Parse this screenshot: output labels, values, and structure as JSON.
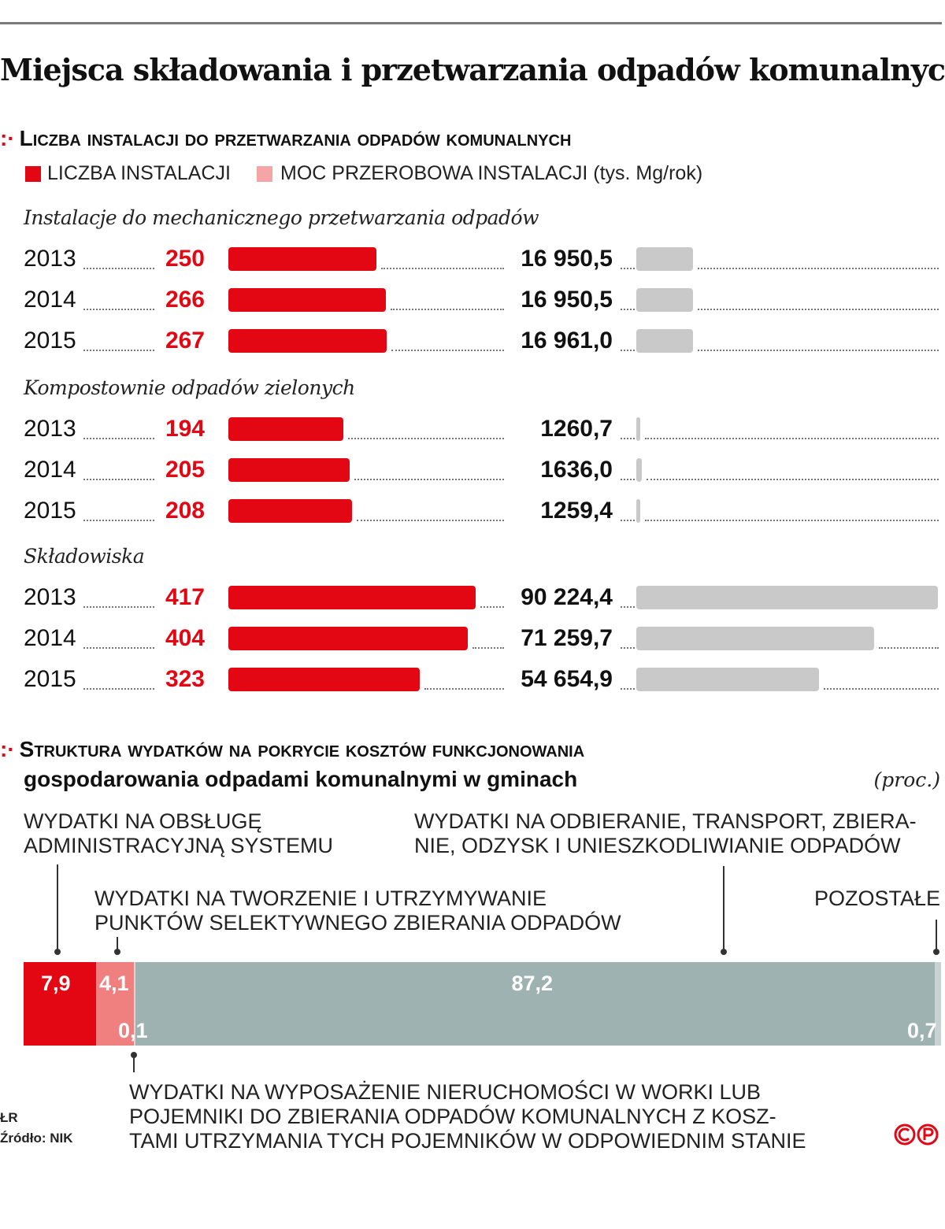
{
  "title": "Miejsca składowania i przetwarzania odpadów komunalnych",
  "section1": {
    "heading": "Liczba instalacji do przetwarzania odpadów komunalnych",
    "legend": [
      {
        "label": "LICZBA INSTALACJI",
        "color": "#e30613"
      },
      {
        "label": "MOC PRZEROBOWA INSTALACJI (tys. Mg/rok)",
        "color": "#f4a6a6"
      }
    ]
  },
  "section2": {
    "heading_line1": "Struktura wydatków na pokrycie kosztów funkcjonowania",
    "heading_line2": "gospodarowania odpadami komunalnymi w gminach",
    "unit": "(proc.)"
  },
  "colors": {
    "red": "#e30613",
    "pink": "#f08080",
    "grey_bar": "#c9c9c9",
    "teal": "#9fb2b2"
  },
  "chart_data": [
    {
      "type": "bar",
      "title": "Liczba instalacji do przetwarzania odpadów komunalnych",
      "groups": [
        {
          "name": "Instalacje do mechanicznego przetwarzania odpadów",
          "rows": [
            {
              "year": "2013",
              "count": 250,
              "count_label": "250",
              "capacity": 16950.5,
              "capacity_label": "16 950,5"
            },
            {
              "year": "2014",
              "count": 266,
              "count_label": "266",
              "capacity": 16950.5,
              "capacity_label": "16 950,5"
            },
            {
              "year": "2015",
              "count": 267,
              "count_label": "267",
              "capacity": 16961.0,
              "capacity_label": "16 961,0"
            }
          ]
        },
        {
          "name": "Kompostownie odpadów zielonych",
          "rows": [
            {
              "year": "2013",
              "count": 194,
              "count_label": "194",
              "capacity": 1260.7,
              "capacity_label": "1260,7"
            },
            {
              "year": "2014",
              "count": 205,
              "count_label": "205",
              "capacity": 1636.0,
              "capacity_label": "1636,0"
            },
            {
              "year": "2015",
              "count": 208,
              "count_label": "208",
              "capacity": 1259.4,
              "capacity_label": "1259,4"
            }
          ]
        },
        {
          "name": "Składowiska",
          "rows": [
            {
              "year": "2013",
              "count": 417,
              "count_label": "417",
              "capacity": 90224.4,
              "capacity_label": "90 224,4"
            },
            {
              "year": "2014",
              "count": 404,
              "count_label": "404",
              "capacity": 71259.7,
              "capacity_label": "71 259,7"
            },
            {
              "year": "2015",
              "count": 323,
              "count_label": "323",
              "capacity": 54654.9,
              "capacity_label": "54 654,9"
            }
          ]
        }
      ],
      "series": [
        {
          "name": "LICZBA INSTALACJI",
          "color": "#e30613"
        },
        {
          "name": "MOC PRZEROBOWA INSTALACJI (tys. Mg/rok)",
          "color": "#c9c9c9"
        }
      ]
    },
    {
      "type": "bar",
      "title": "Struktura wydatków na pokrycie kosztów funkcjonowania gospodarowania odpadami komunalnymi w gminach",
      "unit": "(proc.)",
      "stacked": true,
      "segments": [
        {
          "value": 7.9,
          "label": "7,9",
          "color": "#e30613",
          "caption_line1": "WYDATKI NA OBSŁUGĘ",
          "caption_line2": "ADMINISTRACYJNĄ SYSTEMU"
        },
        {
          "value": 4.1,
          "label": "4,1",
          "color": "#f08080",
          "caption_line1": "WYDATKI NA TWORZENIE I UTRZYMYWANIE",
          "caption_line2": "PUNKTÓW SELEKTYWNEGO ZBIERANIA ODPADÓW"
        },
        {
          "value": 0.1,
          "label": "0,1",
          "color": "#f6c9c9",
          "caption_line1": "WYDATKI NA WYPOSAŻENIE NIERUCHOMOŚCI W WORKI LUB",
          "caption_line2": "POJEMNIKI DO ZBIERANIA ODPADÓW KOMUNALNYCH Z KOSZ-",
          "caption_line3": "TAMI UTRZYMANIA TYCH POJEMNIKÓW W ODPOWIEDNIM STANIE"
        },
        {
          "value": 87.2,
          "label": "87,2",
          "color": "#9fb2b2",
          "caption_line1": "WYDATKI NA ODBIERANIE, TRANSPORT, ZBIERA-",
          "caption_line2": "NIE, ODZYSK I UNIESZKODLIWIANIE ODPADÓW"
        },
        {
          "value": 0.7,
          "label": "0,7",
          "color": "#c7d3d3",
          "caption_line1": "POZOSTAŁE"
        }
      ]
    }
  ],
  "footer": {
    "author": "ŁR",
    "source": "Źródło: NIK"
  }
}
